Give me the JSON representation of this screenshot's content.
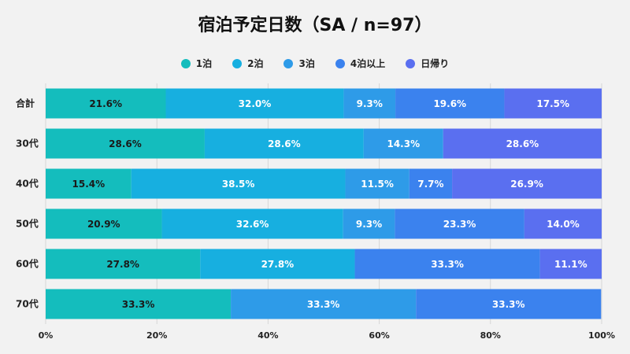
{
  "chart_data": {
    "type": "bar",
    "orientation": "horizontal",
    "stacked": true,
    "title": "宿泊予定日数（SA / n=97）",
    "categories": [
      "合計",
      "30代",
      "40代",
      "50代",
      "60代",
      "70代"
    ],
    "series": [
      {
        "name": "1泊",
        "color": "#14bdbd",
        "values": [
          21.6,
          28.6,
          15.4,
          20.9,
          27.8,
          33.3
        ]
      },
      {
        "name": "2泊",
        "color": "#17afe0",
        "values": [
          32.0,
          28.6,
          38.5,
          32.6,
          27.8,
          0
        ]
      },
      {
        "name": "3泊",
        "color": "#2e9be8",
        "values": [
          9.3,
          14.3,
          11.5,
          9.3,
          0,
          33.3
        ]
      },
      {
        "name": "4泊以上",
        "color": "#3b82ee",
        "values": [
          19.6,
          0,
          7.7,
          23.3,
          33.3,
          33.3
        ]
      },
      {
        "name": "日帰り",
        "color": "#5a6ff0",
        "values": [
          17.5,
          28.6,
          26.9,
          14.0,
          11.1,
          0
        ]
      }
    ],
    "xlim": [
      0,
      100
    ],
    "xticks": [
      "0%",
      "20%",
      "40%",
      "60%",
      "80%",
      "100%"
    ],
    "grid": true,
    "legend": "top-center"
  }
}
